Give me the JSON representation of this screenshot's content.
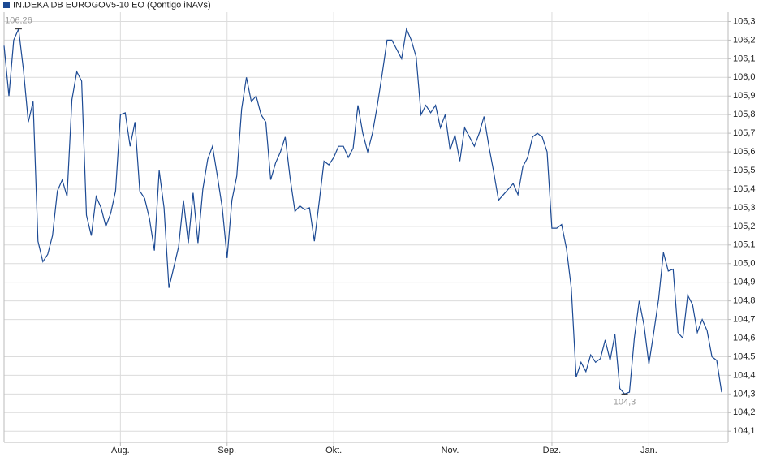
{
  "chart_data": {
    "type": "line",
    "series": [
      {
        "name": "IN.DEKA DB EUROGOV5-10 EO (Qontigo iNAVs)",
        "color": "#1c4a94",
        "values": [
          106.17,
          105.9,
          106.2,
          106.26,
          106.04,
          105.76,
          105.87,
          105.12,
          105.01,
          105.05,
          105.15,
          105.39,
          105.45,
          105.36,
          105.88,
          106.03,
          105.98,
          105.26,
          105.15,
          105.36,
          105.3,
          105.2,
          105.27,
          105.39,
          105.8,
          105.81,
          105.63,
          105.76,
          105.39,
          105.35,
          105.24,
          105.07,
          105.5,
          105.3,
          104.87,
          104.98,
          105.09,
          105.34,
          105.11,
          105.38,
          105.11,
          105.4,
          105.56,
          105.63,
          105.47,
          105.3,
          105.03,
          105.34,
          105.47,
          105.83,
          106.0,
          105.87,
          105.9,
          105.8,
          105.76,
          105.45,
          105.54,
          105.6,
          105.68,
          105.46,
          105.28,
          105.31,
          105.29,
          105.3,
          105.12,
          105.33,
          105.55,
          105.53,
          105.57,
          105.63,
          105.63,
          105.57,
          105.62,
          105.85,
          105.7,
          105.6,
          105.7,
          105.85,
          106.02,
          106.2,
          106.2,
          106.15,
          106.1,
          106.26,
          106.2,
          106.11,
          105.8,
          105.85,
          105.81,
          105.85,
          105.73,
          105.8,
          105.61,
          105.69,
          105.55,
          105.73,
          105.68,
          105.63,
          105.7,
          105.79,
          105.63,
          105.49,
          105.34,
          105.37,
          105.4,
          105.43,
          105.37,
          105.52,
          105.57,
          105.68,
          105.7,
          105.68,
          105.6,
          105.19,
          105.19,
          105.21,
          105.08,
          104.87,
          104.39,
          104.47,
          104.42,
          104.51,
          104.47,
          104.49,
          104.59,
          104.48,
          104.62,
          104.33,
          104.3,
          104.31,
          104.6,
          104.8,
          104.67,
          104.46,
          104.63,
          104.81,
          105.06,
          104.96,
          104.97,
          104.63,
          104.6,
          104.83,
          104.78,
          104.63,
          104.7,
          104.64,
          104.5,
          104.48,
          104.31
        ]
      }
    ],
    "categories": [
      null,
      null,
      null,
      null,
      null,
      null,
      null,
      null,
      null,
      null,
      null,
      null,
      null,
      null,
      null,
      null,
      null,
      null,
      null,
      null,
      null,
      null,
      null,
      null,
      "Aug.",
      null,
      null,
      null,
      null,
      null,
      null,
      null,
      null,
      null,
      null,
      null,
      null,
      null,
      null,
      null,
      null,
      null,
      null,
      null,
      null,
      null,
      "Sep.",
      null,
      null,
      null,
      null,
      null,
      null,
      null,
      null,
      null,
      null,
      null,
      null,
      null,
      null,
      null,
      null,
      null,
      null,
      null,
      null,
      null,
      "Okt.",
      null,
      null,
      null,
      null,
      null,
      null,
      null,
      null,
      null,
      null,
      null,
      null,
      null,
      null,
      null,
      null,
      null,
      null,
      null,
      null,
      null,
      null,
      null,
      "Nov.",
      null,
      null,
      null,
      null,
      null,
      null,
      null,
      null,
      null,
      null,
      null,
      null,
      null,
      null,
      null,
      null,
      null,
      null,
      null,
      null,
      "Dez.",
      null,
      null,
      null,
      null,
      null,
      null,
      null,
      null,
      null,
      null,
      null,
      null,
      null,
      null,
      null,
      null,
      null,
      null,
      null,
      "Jan.",
      null,
      null,
      null,
      null,
      null,
      null,
      null,
      null,
      null,
      null,
      null,
      null,
      null,
      null,
      null
    ],
    "ylim": [
      104.04,
      106.35
    ],
    "yticks": [
      {
        "value": 106.3,
        "label": "106,3"
      },
      {
        "value": 106.2,
        "label": "106,2"
      },
      {
        "value": 106.1,
        "label": "106,1"
      },
      {
        "value": 106.0,
        "label": "106,0"
      },
      {
        "value": 105.9,
        "label": "105,9"
      },
      {
        "value": 105.8,
        "label": "105,8"
      },
      {
        "value": 105.7,
        "label": "105,7"
      },
      {
        "value": 105.6,
        "label": "105,6"
      },
      {
        "value": 105.5,
        "label": "105,5"
      },
      {
        "value": 105.4,
        "label": "105,4"
      },
      {
        "value": 105.3,
        "label": "105,3"
      },
      {
        "value": 105.2,
        "label": "105,2"
      },
      {
        "value": 105.1,
        "label": "105,1"
      },
      {
        "value": 105.0,
        "label": "105,0"
      },
      {
        "value": 104.9,
        "label": "104,9"
      },
      {
        "value": 104.8,
        "label": "104,8"
      },
      {
        "value": 104.7,
        "label": "104,7"
      },
      {
        "value": 104.6,
        "label": "104,6"
      },
      {
        "value": 104.5,
        "label": "104,5"
      },
      {
        "value": 104.4,
        "label": "104,4"
      },
      {
        "value": 104.3,
        "label": "104,3"
      },
      {
        "value": 104.2,
        "label": "104,2"
      },
      {
        "value": 104.1,
        "label": "104,1"
      }
    ],
    "max_label": "106,26",
    "min_label": "104,3",
    "grid": true
  }
}
